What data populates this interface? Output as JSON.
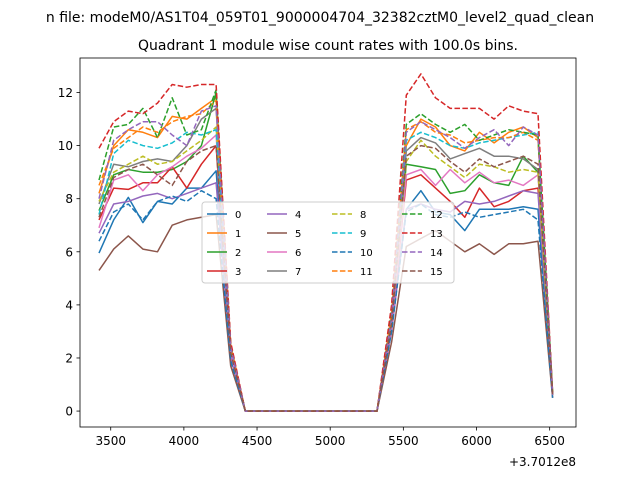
{
  "chart_data": {
    "type": "line",
    "suptitle": "n file: modeM0/AS1T04_059T01_9000004704_32382cztM0_level2_quad_clean",
    "title": "Quadrant 1 module wise count rates with 100.0s bins.",
    "xlabel": "",
    "ylabel": "",
    "x_offset_label": "+3.7012e8",
    "xlim": [
      3290,
      6680
    ],
    "ylim": [
      -0.6,
      13.3
    ],
    "x_ticks": [
      3500,
      4000,
      4500,
      5000,
      5500,
      6000,
      6500
    ],
    "y_ticks": [
      0,
      2,
      4,
      6,
      8,
      10,
      12
    ],
    "legend_position": "center",
    "x": [
      3420,
      3520,
      3620,
      3720,
      3820,
      3920,
      4020,
      4120,
      4220,
      4320,
      4420,
      4520,
      4620,
      4720,
      4820,
      4920,
      5020,
      5120,
      5220,
      5320,
      5420,
      5520,
      5620,
      5720,
      5820,
      5920,
      6020,
      6120,
      6220,
      6320,
      6420,
      6520
    ],
    "series": [
      {
        "name": "0",
        "color": "#1f77b4",
        "dash": "solid",
        "values": [
          5.95,
          7.2,
          8.05,
          7.1,
          7.9,
          7.8,
          8.4,
          8.4,
          9.05,
          2.0,
          0.0,
          0.0,
          0.0,
          0.0,
          0.0,
          0.0,
          0.0,
          0.0,
          0.0,
          0.0,
          3.2,
          7.6,
          8.3,
          7.5,
          7.4,
          6.8,
          7.6,
          7.6,
          7.6,
          7.7,
          7.6,
          0.6
        ]
      },
      {
        "name": "1",
        "color": "#ff7f0e",
        "dash": "solid",
        "values": [
          8.2,
          10.0,
          10.6,
          10.5,
          10.3,
          11.1,
          11.0,
          11.4,
          11.8,
          2.4,
          0.0,
          0.0,
          0.0,
          0.0,
          0.0,
          0.0,
          0.0,
          0.0,
          0.0,
          0.0,
          3.6,
          10.0,
          11.0,
          10.7,
          10.0,
          9.8,
          10.5,
          10.1,
          10.5,
          10.7,
          10.3,
          0.7
        ]
      },
      {
        "name": "2",
        "color": "#2ca02c",
        "dash": "solid",
        "values": [
          7.55,
          8.9,
          9.1,
          9.0,
          9.0,
          9.1,
          9.4,
          10.0,
          12.0,
          2.3,
          0.0,
          0.0,
          0.0,
          0.0,
          0.0,
          0.0,
          0.0,
          0.0,
          0.0,
          0.0,
          3.5,
          9.3,
          9.2,
          9.1,
          8.2,
          8.3,
          8.9,
          8.6,
          8.5,
          9.6,
          9.0,
          0.6
        ]
      },
      {
        "name": "3",
        "color": "#d62728",
        "dash": "solid",
        "values": [
          7.2,
          8.4,
          8.35,
          8.6,
          8.6,
          9.2,
          8.4,
          9.3,
          10.0,
          2.1,
          0.0,
          0.0,
          0.0,
          0.0,
          0.0,
          0.0,
          0.0,
          0.0,
          0.0,
          0.0,
          3.1,
          8.7,
          8.9,
          8.4,
          7.9,
          7.3,
          8.4,
          7.7,
          7.9,
          8.3,
          8.4,
          0.6
        ]
      },
      {
        "name": "4",
        "color": "#9467bd",
        "dash": "solid",
        "values": [
          6.7,
          7.8,
          7.9,
          8.1,
          8.2,
          8.0,
          8.2,
          8.4,
          8.6,
          2.0,
          0.0,
          0.0,
          0.0,
          0.0,
          0.0,
          0.0,
          0.0,
          0.0,
          0.0,
          0.0,
          3.0,
          7.6,
          7.8,
          7.6,
          7.5,
          7.9,
          7.8,
          7.9,
          8.1,
          8.3,
          8.2,
          0.6
        ]
      },
      {
        "name": "5",
        "color": "#8c564b",
        "dash": "solid",
        "values": [
          5.3,
          6.1,
          6.6,
          6.1,
          6.0,
          7.0,
          7.2,
          7.3,
          7.4,
          1.7,
          0.0,
          0.0,
          0.0,
          0.0,
          0.0,
          0.0,
          0.0,
          0.0,
          0.0,
          0.0,
          2.6,
          6.2,
          6.5,
          6.8,
          6.4,
          6.0,
          6.3,
          5.9,
          6.3,
          6.3,
          6.4,
          0.5
        ]
      },
      {
        "name": "6",
        "color": "#e377c2",
        "dash": "solid",
        "values": [
          6.9,
          8.7,
          8.9,
          8.3,
          8.9,
          9.2,
          9.6,
          9.9,
          10.4,
          2.2,
          0.0,
          0.0,
          0.0,
          0.0,
          0.0,
          0.0,
          0.0,
          0.0,
          0.0,
          0.0,
          3.2,
          8.9,
          9.1,
          8.5,
          9.1,
          8.6,
          9.0,
          8.6,
          8.7,
          8.5,
          8.9,
          0.6
        ]
      },
      {
        "name": "7",
        "color": "#7f7f7f",
        "dash": "solid",
        "values": [
          7.8,
          9.3,
          9.2,
          9.4,
          9.5,
          9.4,
          10.0,
          11.0,
          11.4,
          2.4,
          0.0,
          0.0,
          0.0,
          0.0,
          0.0,
          0.0,
          0.0,
          0.0,
          0.0,
          0.0,
          3.4,
          9.8,
          10.3,
          10.1,
          9.5,
          9.7,
          9.9,
          9.6,
          9.6,
          9.5,
          9.1,
          0.6
        ]
      },
      {
        "name": "8",
        "color": "#bcbd22",
        "dash": "dashed",
        "values": [
          7.9,
          9.0,
          9.3,
          9.6,
          9.3,
          9.4,
          9.8,
          10.2,
          10.7,
          2.4,
          0.0,
          0.0,
          0.0,
          0.0,
          0.0,
          0.0,
          0.0,
          0.0,
          0.0,
          0.0,
          3.4,
          9.4,
          10.2,
          9.6,
          9.2,
          8.8,
          9.3,
          9.2,
          9.0,
          9.1,
          9.0,
          0.6
        ]
      },
      {
        "name": "9",
        "color": "#17becf",
        "dash": "dashed",
        "values": [
          7.4,
          9.7,
          10.2,
          10.0,
          9.9,
          10.1,
          10.5,
          10.4,
          10.6,
          2.4,
          0.0,
          0.0,
          0.0,
          0.0,
          0.0,
          0.0,
          0.0,
          0.0,
          0.0,
          0.0,
          3.6,
          10.2,
          10.5,
          10.3,
          10.0,
          9.9,
          10.1,
          10.2,
          10.3,
          10.4,
          10.5,
          0.7
        ]
      },
      {
        "name": "10",
        "color": "#1f77b4",
        "dash": "dashed",
        "values": [
          6.4,
          7.5,
          7.8,
          7.2,
          7.9,
          8.1,
          7.9,
          8.3,
          8.0,
          1.9,
          0.0,
          0.0,
          0.0,
          0.0,
          0.0,
          0.0,
          0.0,
          0.0,
          0.0,
          0.0,
          3.0,
          7.5,
          7.8,
          7.4,
          7.3,
          7.5,
          7.3,
          7.4,
          7.5,
          7.6,
          7.2,
          0.5
        ]
      },
      {
        "name": "11",
        "color": "#ff7f0e",
        "dash": "dashed",
        "values": [
          8.5,
          9.9,
          10.3,
          10.7,
          10.5,
          10.9,
          11.1,
          11.2,
          11.7,
          2.5,
          0.0,
          0.0,
          0.0,
          0.0,
          0.0,
          0.0,
          0.0,
          0.0,
          0.0,
          0.0,
          3.7,
          10.6,
          10.9,
          10.5,
          10.4,
          10.1,
          10.2,
          10.3,
          10.3,
          10.5,
          10.2,
          0.7
        ]
      },
      {
        "name": "12",
        "color": "#2ca02c",
        "dash": "dashed",
        "values": [
          8.7,
          10.7,
          10.8,
          11.4,
          10.3,
          11.8,
          10.4,
          10.6,
          12.1,
          2.5,
          0.0,
          0.0,
          0.0,
          0.0,
          0.0,
          0.0,
          0.0,
          0.0,
          0.0,
          0.0,
          3.8,
          10.8,
          11.2,
          10.8,
          10.5,
          10.8,
          10.2,
          10.4,
          10.6,
          10.5,
          10.4,
          0.7
        ]
      },
      {
        "name": "13",
        "color": "#d62728",
        "dash": "dashed",
        "values": [
          9.9,
          10.9,
          11.3,
          11.2,
          11.6,
          12.3,
          12.2,
          12.3,
          12.3,
          2.6,
          0.0,
          0.0,
          0.0,
          0.0,
          0.0,
          0.0,
          0.0,
          0.0,
          0.0,
          0.0,
          4.0,
          11.9,
          12.7,
          11.8,
          11.4,
          11.4,
          11.4,
          11.0,
          11.5,
          11.3,
          11.2,
          0.7
        ]
      },
      {
        "name": "14",
        "color": "#9467bd",
        "dash": "dashed",
        "values": [
          8.0,
          10.2,
          10.6,
          10.9,
          10.9,
          10.4,
          10.0,
          11.3,
          11.5,
          2.4,
          0.0,
          0.0,
          0.0,
          0.0,
          0.0,
          0.0,
          0.0,
          0.0,
          0.0,
          0.0,
          3.5,
          10.5,
          10.9,
          10.6,
          10.3,
          9.9,
          10.3,
          10.6,
          10.0,
          10.7,
          10.4,
          0.6
        ]
      },
      {
        "name": "15",
        "color": "#8c564b",
        "dash": "dashed",
        "values": [
          7.3,
          8.8,
          9.1,
          9.3,
          8.9,
          8.5,
          9.4,
          9.8,
          10.0,
          2.2,
          0.0,
          0.0,
          0.0,
          0.0,
          0.0,
          0.0,
          0.0,
          0.0,
          0.0,
          0.0,
          3.3,
          9.6,
          10.0,
          9.9,
          9.4,
          9.0,
          9.5,
          9.2,
          9.4,
          9.6,
          9.3,
          0.6
        ]
      }
    ]
  }
}
